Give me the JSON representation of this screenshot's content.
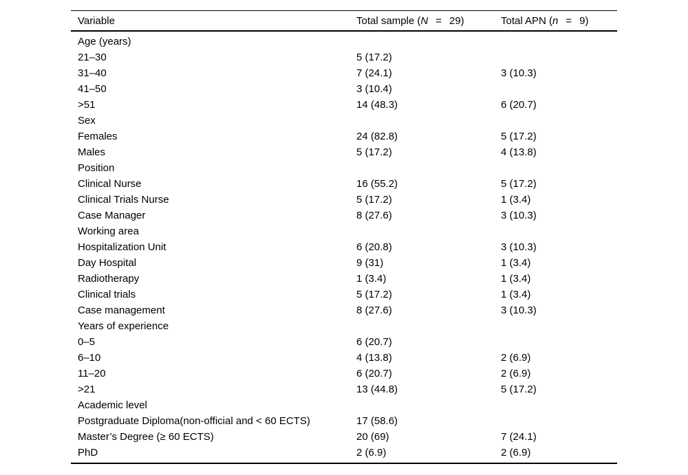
{
  "table": {
    "header": {
      "col1": "Variable",
      "col2": {
        "prefix": "Total sample (",
        "var": "N",
        "eq": "=",
        "value": "29)"
      },
      "col3": {
        "prefix": "Total APN (",
        "var": "n",
        "eq": "=",
        "value": "9)"
      }
    },
    "rows": [
      {
        "label": "Age (years)",
        "total_sample": "",
        "total_apn": ""
      },
      {
        "label": "21–30",
        "total_sample": "5 (17.2)",
        "total_apn": ""
      },
      {
        "label": "31–40",
        "total_sample": "7 (24.1)",
        "total_apn": "3 (10.3)"
      },
      {
        "label": "41–50",
        "total_sample": "3 (10.4)",
        "total_apn": ""
      },
      {
        "label": ">51",
        "total_sample": "14 (48.3)",
        "total_apn": "6 (20.7)"
      },
      {
        "label": "Sex",
        "total_sample": "",
        "total_apn": ""
      },
      {
        "label": "Females",
        "total_sample": "24 (82.8)",
        "total_apn": "5 (17.2)"
      },
      {
        "label": "Males",
        "total_sample": "5 (17.2)",
        "total_apn": "4 (13.8)"
      },
      {
        "label": "Position",
        "total_sample": "",
        "total_apn": ""
      },
      {
        "label": "Clinical Nurse",
        "total_sample": "16 (55.2)",
        "total_apn": "5 (17.2)"
      },
      {
        "label": "Clinical Trials Nurse",
        "total_sample": "5 (17.2)",
        "total_apn": "1 (3.4)"
      },
      {
        "label": "Case Manager",
        "total_sample": "8 (27.6)",
        "total_apn": "3 (10.3)"
      },
      {
        "label": "Working area",
        "total_sample": "",
        "total_apn": ""
      },
      {
        "label": "Hospitalization Unit",
        "total_sample": "6 (20.8)",
        "total_apn": "3 (10.3)"
      },
      {
        "label": "Day Hospital",
        "total_sample": "9 (31)",
        "total_apn": "1 (3.4)"
      },
      {
        "label": "Radiotherapy",
        "total_sample": "1 (3.4)",
        "total_apn": "1 (3.4)"
      },
      {
        "label": "Clinical trials",
        "total_sample": "5 (17.2)",
        "total_apn": "1 (3.4)"
      },
      {
        "label": "Case management",
        "total_sample": "8 (27.6)",
        "total_apn": "3 (10.3)"
      },
      {
        "label": "Years of experience",
        "total_sample": "",
        "total_apn": ""
      },
      {
        "label": "0–5",
        "total_sample": "6 (20.7)",
        "total_apn": ""
      },
      {
        "label": "6–10",
        "total_sample": "4 (13.8)",
        "total_apn": "2 (6.9)"
      },
      {
        "label": "11–20",
        "total_sample": "6 (20.7)",
        "total_apn": "2 (6.9)"
      },
      {
        "label": ">21",
        "total_sample": "13 (44.8)",
        "total_apn": "5 (17.2)"
      },
      {
        "label": "Academic level",
        "total_sample": "",
        "total_apn": ""
      },
      {
        "label": "Postgraduate Diploma(non-official and < 60 ECTS)",
        "total_sample": "17 (58.6)",
        "total_apn": ""
      },
      {
        "label": "Master’s Degree (≥ 60 ECTS)",
        "total_sample": "20 (69)",
        "total_apn": "7 (24.1)"
      },
      {
        "label": "PhD",
        "total_sample": "2 (6.9)",
        "total_apn": "2 (6.9)"
      }
    ]
  }
}
